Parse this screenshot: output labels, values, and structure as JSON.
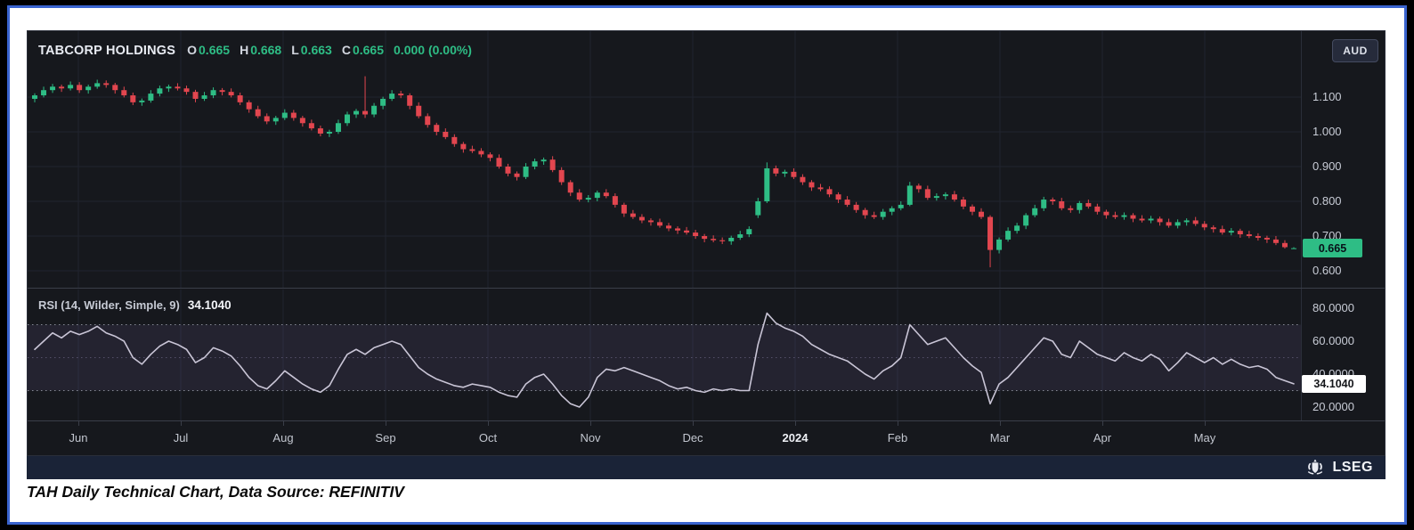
{
  "header": {
    "symbol": "TABCORP HOLDINGS",
    "fields": [
      {
        "label": "O",
        "value": "0.665"
      },
      {
        "label": "H",
        "value": "0.668"
      },
      {
        "label": "L",
        "value": "0.663"
      },
      {
        "label": "C",
        "value": "0.665"
      }
    ],
    "change": "0.000 (0.00%)"
  },
  "currency_button": {
    "label": "AUD"
  },
  "price_axis": {
    "labels": [
      "1.100",
      "1.000",
      "0.900",
      "0.800",
      "0.700",
      "0.600"
    ],
    "badge": "0.665"
  },
  "rsi_panel": {
    "label": "RSI (14, Wilder, Simple, 9)",
    "value": "34.1040",
    "axis_labels": [
      "80.0000",
      "60.0000",
      "40.0000",
      "20.0000"
    ],
    "badge": "34.1040"
  },
  "time_axis": {
    "labels": [
      "Jun",
      "Jul",
      "Aug",
      "Sep",
      "Oct",
      "Nov",
      "Dec",
      "2024",
      "Feb",
      "Mar",
      "Apr",
      "May"
    ]
  },
  "footer": {
    "lseg_label": "LSEG",
    "caption": "TAH Daily Technical Chart, Data Source: REFINITIV"
  },
  "colors": {
    "up": "#2ebd85",
    "down": "#e2464f",
    "rsi_line": "#c9c5d6",
    "grid": "#20242e",
    "band_fill": "rgba(143,115,190,0.12)",
    "dotted_level": "#9a9daa",
    "dotted_mid": "#55506a",
    "frame_blue": "#3a64cf"
  },
  "chart_data": [
    {
      "type": "candlestick",
      "title": "TABCORP HOLDINGS daily OHLC (AUD)",
      "x_axis": {
        "tick_labels": [
          "Jun",
          "Jul",
          "Aug",
          "Sep",
          "Oct",
          "Nov",
          "Dec",
          "2024",
          "Feb",
          "Mar",
          "Apr",
          "May"
        ],
        "range": [
          "Jun 2023",
          "May 2024"
        ]
      },
      "y_axis": {
        "tick_values": [
          1.1,
          1.0,
          0.9,
          0.8,
          0.7,
          0.6
        ],
        "range": [
          0.56,
          1.21
        ]
      },
      "last_quote": {
        "open": 0.665,
        "high": 0.668,
        "low": 0.663,
        "close": 0.665,
        "change": 0.0,
        "change_pct": 0.0
      },
      "ohlc": [
        [
          1.095,
          1.111,
          1.085,
          1.105
        ],
        [
          1.105,
          1.13,
          1.099,
          1.12
        ],
        [
          1.12,
          1.138,
          1.112,
          1.13
        ],
        [
          1.13,
          1.136,
          1.115,
          1.125
        ],
        [
          1.125,
          1.145,
          1.119,
          1.135
        ],
        [
          1.135,
          1.143,
          1.112,
          1.12
        ],
        [
          1.12,
          1.136,
          1.11,
          1.13
        ],
        [
          1.13,
          1.15,
          1.124,
          1.14
        ],
        [
          1.14,
          1.148,
          1.127,
          1.135
        ],
        [
          1.135,
          1.141,
          1.11,
          1.12
        ],
        [
          1.12,
          1.13,
          1.099,
          1.105
        ],
        [
          1.105,
          1.113,
          1.077,
          1.085
        ],
        [
          1.085,
          1.096,
          1.075,
          1.09
        ],
        [
          1.09,
          1.12,
          1.084,
          1.11
        ],
        [
          1.11,
          1.133,
          1.102,
          1.125
        ],
        [
          1.125,
          1.136,
          1.115,
          1.13
        ],
        [
          1.13,
          1.14,
          1.119,
          1.125
        ],
        [
          1.125,
          1.133,
          1.107,
          1.115
        ],
        [
          1.115,
          1.121,
          1.085,
          1.095
        ],
        [
          1.095,
          1.115,
          1.089,
          1.105
        ],
        [
          1.105,
          1.128,
          1.097,
          1.12
        ],
        [
          1.12,
          1.126,
          1.105,
          1.115
        ],
        [
          1.115,
          1.125,
          1.099,
          1.105
        ],
        [
          1.105,
          1.113,
          1.077,
          1.085
        ],
        [
          1.085,
          1.091,
          1.055,
          1.065
        ],
        [
          1.065,
          1.075,
          1.039,
          1.045
        ],
        [
          1.045,
          1.053,
          1.022,
          1.03
        ],
        [
          1.03,
          1.046,
          1.02,
          1.04
        ],
        [
          1.04,
          1.065,
          1.034,
          1.055
        ],
        [
          1.055,
          1.063,
          1.032,
          1.04
        ],
        [
          1.04,
          1.046,
          1.015,
          1.025
        ],
        [
          1.025,
          1.035,
          1.004,
          1.01
        ],
        [
          1.01,
          1.018,
          0.987,
          0.995
        ],
        [
          0.995,
          1.006,
          0.985,
          1.0
        ],
        [
          1.0,
          1.035,
          0.994,
          1.025
        ],
        [
          1.025,
          1.058,
          1.017,
          1.05
        ],
        [
          1.05,
          1.066,
          1.04,
          1.06
        ],
        [
          1.06,
          1.16,
          1.04,
          1.05
        ],
        [
          1.05,
          1.083,
          1.042,
          1.075
        ],
        [
          1.075,
          1.101,
          1.065,
          1.095
        ],
        [
          1.095,
          1.12,
          1.089,
          1.11
        ],
        [
          1.11,
          1.118,
          1.097,
          1.105
        ],
        [
          1.105,
          1.111,
          1.065,
          1.075
        ],
        [
          1.075,
          1.085,
          1.039,
          1.045
        ],
        [
          1.045,
          1.053,
          1.012,
          1.02
        ],
        [
          1.02,
          1.026,
          0.99,
          1.0
        ],
        [
          1.0,
          1.01,
          0.979,
          0.985
        ],
        [
          0.985,
          0.993,
          0.957,
          0.965
        ],
        [
          0.965,
          0.971,
          0.94,
          0.95
        ],
        [
          0.95,
          0.96,
          0.939,
          0.945
        ],
        [
          0.945,
          0.953,
          0.927,
          0.935
        ],
        [
          0.935,
          0.941,
          0.915,
          0.925
        ],
        [
          0.925,
          0.935,
          0.894,
          0.9
        ],
        [
          0.9,
          0.908,
          0.872,
          0.88
        ],
        [
          0.88,
          0.886,
          0.86,
          0.87
        ],
        [
          0.87,
          0.91,
          0.864,
          0.9
        ],
        [
          0.9,
          0.923,
          0.892,
          0.915
        ],
        [
          0.915,
          0.926,
          0.905,
          0.92
        ],
        [
          0.92,
          0.93,
          0.884,
          0.89
        ],
        [
          0.89,
          0.898,
          0.847,
          0.855
        ],
        [
          0.855,
          0.861,
          0.815,
          0.825
        ],
        [
          0.825,
          0.835,
          0.799,
          0.805
        ],
        [
          0.805,
          0.818,
          0.797,
          0.81
        ],
        [
          0.81,
          0.831,
          0.8,
          0.825
        ],
        [
          0.825,
          0.835,
          0.809,
          0.815
        ],
        [
          0.815,
          0.823,
          0.782,
          0.79
        ],
        [
          0.79,
          0.796,
          0.755,
          0.765
        ],
        [
          0.765,
          0.775,
          0.749,
          0.755
        ],
        [
          0.755,
          0.763,
          0.737,
          0.745
        ],
        [
          0.745,
          0.751,
          0.73,
          0.74
        ],
        [
          0.74,
          0.75,
          0.724,
          0.73
        ],
        [
          0.73,
          0.738,
          0.714,
          0.722
        ],
        [
          0.722,
          0.728,
          0.706,
          0.716
        ],
        [
          0.716,
          0.726,
          0.704,
          0.71
        ],
        [
          0.71,
          0.718,
          0.692,
          0.7
        ],
        [
          0.7,
          0.706,
          0.682,
          0.692
        ],
        [
          0.692,
          0.702,
          0.682,
          0.688
        ],
        [
          0.688,
          0.696,
          0.677,
          0.685
        ],
        [
          0.685,
          0.701,
          0.675,
          0.695
        ],
        [
          0.695,
          0.715,
          0.689,
          0.705
        ],
        [
          0.705,
          0.728,
          0.697,
          0.72
        ],
        [
          0.76,
          0.81,
          0.752,
          0.8
        ],
        [
          0.8,
          0.912,
          0.795,
          0.895
        ],
        [
          0.895,
          0.903,
          0.872,
          0.88
        ],
        [
          0.88,
          0.891,
          0.87,
          0.885
        ],
        [
          0.885,
          0.895,
          0.864,
          0.87
        ],
        [
          0.87,
          0.878,
          0.847,
          0.855
        ],
        [
          0.855,
          0.861,
          0.83,
          0.84
        ],
        [
          0.84,
          0.85,
          0.829,
          0.835
        ],
        [
          0.835,
          0.843,
          0.812,
          0.82
        ],
        [
          0.82,
          0.826,
          0.795,
          0.805
        ],
        [
          0.805,
          0.815,
          0.784,
          0.79
        ],
        [
          0.79,
          0.798,
          0.767,
          0.775
        ],
        [
          0.775,
          0.781,
          0.75,
          0.76
        ],
        [
          0.76,
          0.77,
          0.749,
          0.755
        ],
        [
          0.755,
          0.778,
          0.747,
          0.77
        ],
        [
          0.77,
          0.786,
          0.76,
          0.78
        ],
        [
          0.78,
          0.8,
          0.774,
          0.79
        ],
        [
          0.79,
          0.856,
          0.786,
          0.845
        ],
        [
          0.845,
          0.851,
          0.825,
          0.835
        ],
        [
          0.835,
          0.845,
          0.804,
          0.81
        ],
        [
          0.81,
          0.823,
          0.802,
          0.815
        ],
        [
          0.815,
          0.826,
          0.805,
          0.82
        ],
        [
          0.82,
          0.83,
          0.799,
          0.805
        ],
        [
          0.805,
          0.813,
          0.777,
          0.785
        ],
        [
          0.785,
          0.791,
          0.76,
          0.77
        ],
        [
          0.77,
          0.78,
          0.749,
          0.755
        ],
        [
          0.755,
          0.76,
          0.61,
          0.66
        ],
        [
          0.66,
          0.696,
          0.65,
          0.69
        ],
        [
          0.69,
          0.725,
          0.684,
          0.715
        ],
        [
          0.715,
          0.738,
          0.707,
          0.73
        ],
        [
          0.73,
          0.766,
          0.72,
          0.76
        ],
        [
          0.76,
          0.79,
          0.754,
          0.78
        ],
        [
          0.78,
          0.813,
          0.772,
          0.805
        ],
        [
          0.805,
          0.811,
          0.79,
          0.8
        ],
        [
          0.8,
          0.81,
          0.774,
          0.78
        ],
        [
          0.78,
          0.788,
          0.767,
          0.775
        ],
        [
          0.775,
          0.801,
          0.765,
          0.795
        ],
        [
          0.795,
          0.805,
          0.779,
          0.785
        ],
        [
          0.785,
          0.793,
          0.762,
          0.77
        ],
        [
          0.77,
          0.776,
          0.75,
          0.76
        ],
        [
          0.76,
          0.77,
          0.749,
          0.755
        ],
        [
          0.755,
          0.768,
          0.747,
          0.76
        ],
        [
          0.76,
          0.766,
          0.74,
          0.75
        ],
        [
          0.75,
          0.76,
          0.739,
          0.745
        ],
        [
          0.745,
          0.758,
          0.737,
          0.75
        ],
        [
          0.75,
          0.756,
          0.73,
          0.74
        ],
        [
          0.74,
          0.75,
          0.724,
          0.73
        ],
        [
          0.73,
          0.748,
          0.722,
          0.74
        ],
        [
          0.74,
          0.751,
          0.73,
          0.745
        ],
        [
          0.745,
          0.755,
          0.729,
          0.735
        ],
        [
          0.735,
          0.743,
          0.717,
          0.725
        ],
        [
          0.725,
          0.731,
          0.71,
          0.72
        ],
        [
          0.72,
          0.73,
          0.704,
          0.71
        ],
        [
          0.71,
          0.723,
          0.702,
          0.715
        ],
        [
          0.715,
          0.721,
          0.695,
          0.705
        ],
        [
          0.705,
          0.715,
          0.694,
          0.7
        ],
        [
          0.7,
          0.708,
          0.687,
          0.695
        ],
        [
          0.695,
          0.701,
          0.68,
          0.69
        ],
        [
          0.69,
          0.7,
          0.674,
          0.68
        ],
        [
          0.68,
          0.688,
          0.664,
          0.668
        ],
        [
          0.665,
          0.668,
          0.663,
          0.665
        ]
      ]
    },
    {
      "type": "line",
      "title": "RSI (14, Wilder, Simple, 9)",
      "last_value": 34.104,
      "y_axis": {
        "tick_values": [
          80,
          60,
          40,
          20
        ],
        "range": [
          10,
          90
        ]
      },
      "levels": {
        "overbought": 70,
        "oversold": 30,
        "mid": 50
      },
      "values": [
        55,
        60,
        65,
        62,
        66,
        64,
        66,
        69,
        65,
        63,
        60,
        50,
        46,
        52,
        57,
        60,
        58,
        55,
        47,
        50,
        56,
        54,
        51,
        45,
        38,
        33,
        31,
        36,
        42,
        38,
        34,
        31,
        29,
        33,
        43,
        52,
        55,
        52,
        56,
        58,
        60,
        58,
        51,
        44,
        40,
        37,
        35,
        33,
        32,
        34,
        33,
        32,
        29,
        27,
        26,
        34,
        38,
        40,
        34,
        27,
        22,
        20,
        26,
        38,
        43,
        42,
        44,
        42,
        40,
        38,
        36,
        33,
        31,
        32,
        30,
        29,
        31,
        30,
        31,
        30,
        30,
        58,
        77,
        71,
        68,
        66,
        63,
        58,
        55,
        52,
        50,
        48,
        44,
        40,
        37,
        42,
        45,
        50,
        70,
        64,
        58,
        60,
        62,
        56,
        50,
        45,
        41,
        22,
        34,
        38,
        44,
        50,
        56,
        62,
        60,
        52,
        50,
        60,
        56,
        52,
        50,
        48,
        53,
        50,
        48,
        52,
        49,
        42,
        47,
        53,
        50,
        47,
        50,
        46,
        49,
        46,
        44,
        45,
        43,
        38,
        36,
        34.1
      ]
    }
  ]
}
